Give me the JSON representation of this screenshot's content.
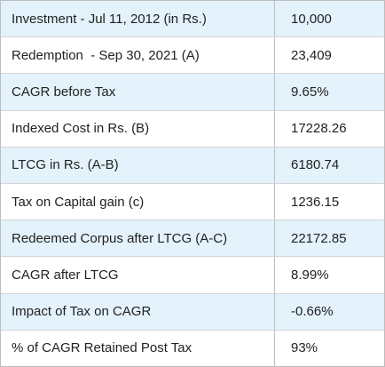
{
  "table": {
    "rows": [
      [
        "Investment - Jul 11, 2012 (in Rs.)",
        "10,000"
      ],
      [
        "Redemption  - Sep 30, 2021 (A)",
        "23,409"
      ],
      [
        "CAGR before Tax",
        "9.65%"
      ],
      [
        "Indexed Cost in Rs. (B)",
        "17228.26"
      ],
      [
        "LTCG in Rs. (A-B)",
        "6180.74"
      ],
      [
        "Tax on Capital gain (c)",
        "1236.15"
      ],
      [
        "Redeemed Corpus after LTCG (A-C)",
        "22172.85"
      ],
      [
        "CAGR after LTCG",
        "8.99%"
      ],
      [
        "Impact of Tax on CAGR",
        "-0.66%"
      ],
      [
        "% of CAGR Retained Post Tax",
        "93%"
      ]
    ]
  }
}
